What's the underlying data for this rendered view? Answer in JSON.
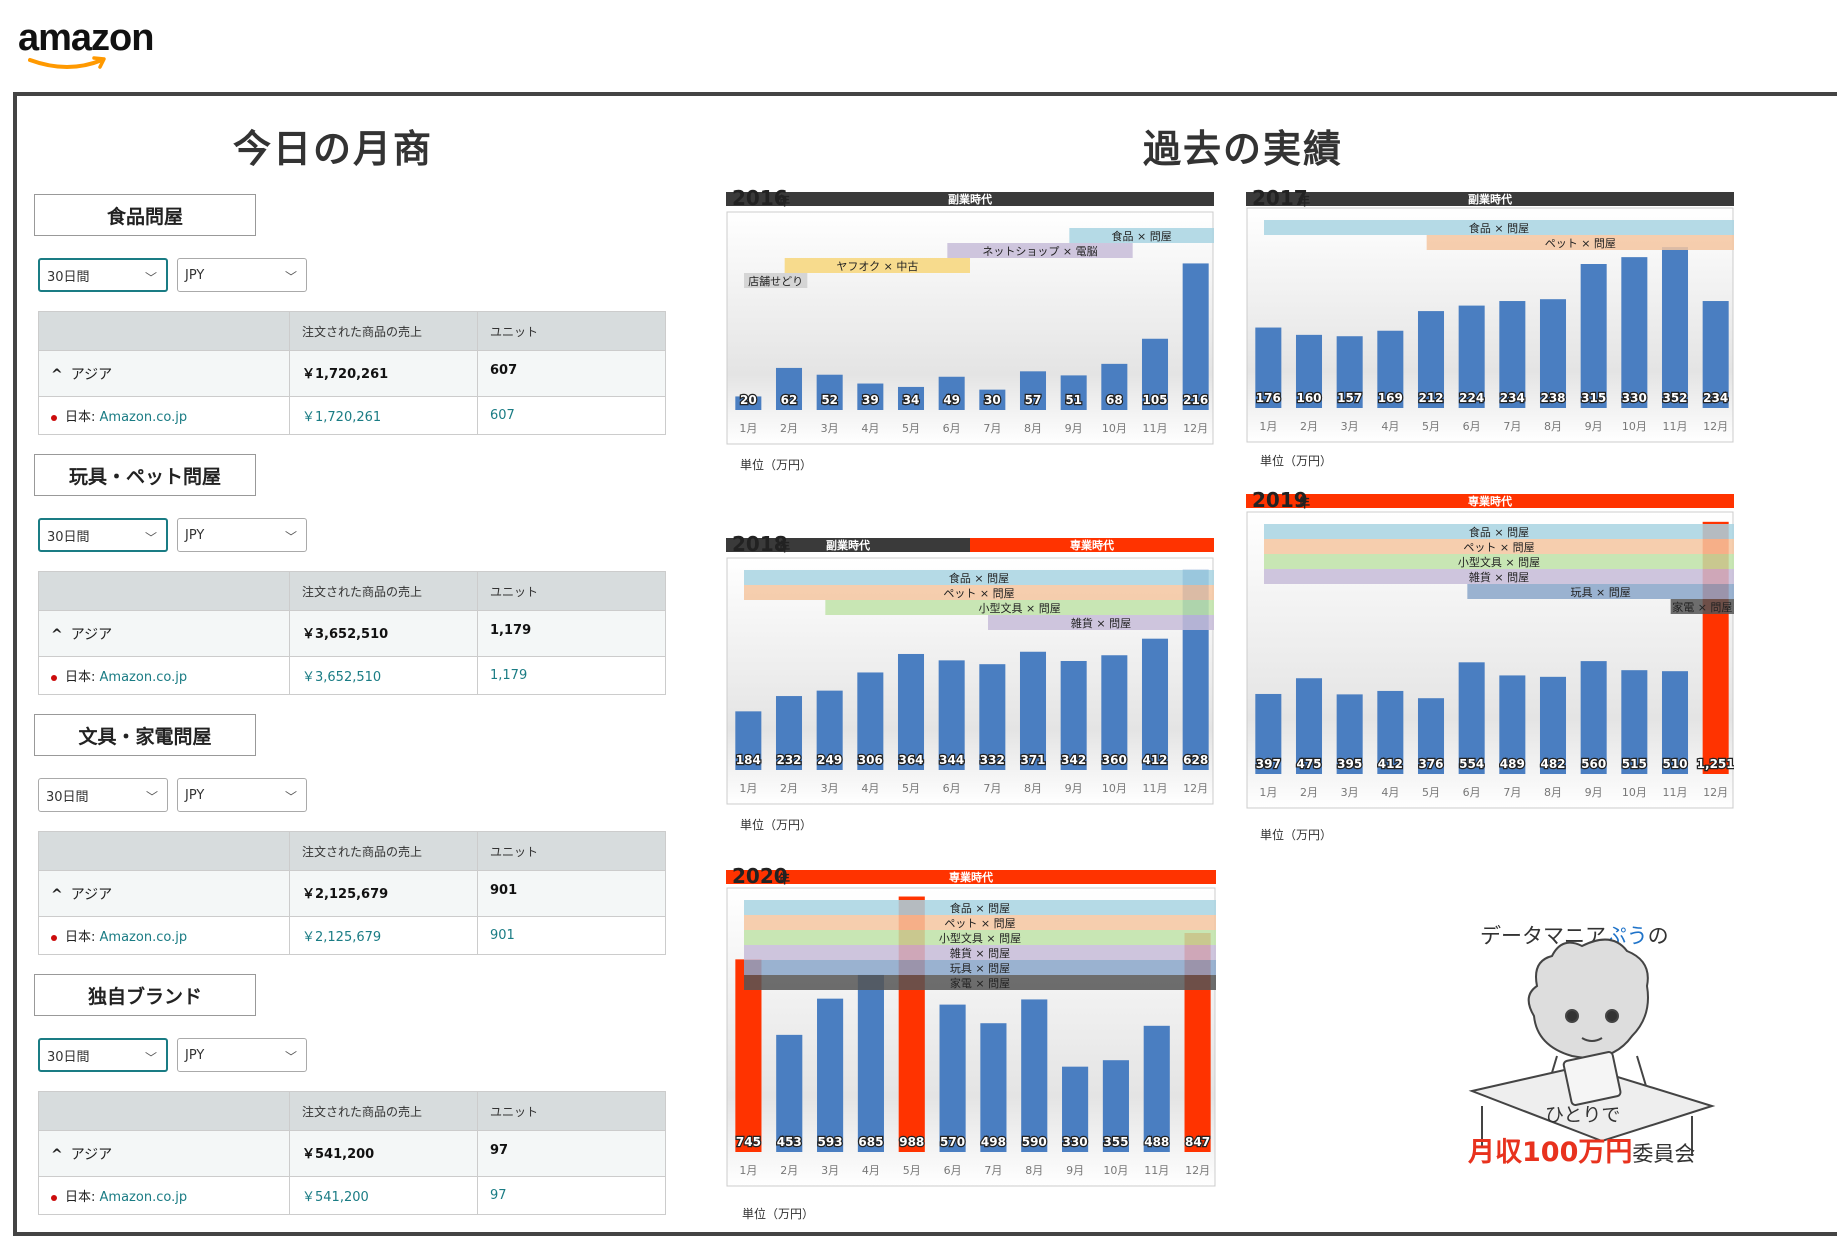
{
  "logo": {
    "text": "amazon"
  },
  "sections": {
    "left_title": "今日の月商",
    "right_title": "過去の実績"
  },
  "categories": [
    {
      "label": "食品問屋",
      "period": "30日間",
      "currency": "JPY",
      "header": [
        "",
        "注文された商品の売上",
        "ユニット"
      ],
      "region": "アジア",
      "region_sales": "￥1,720,261",
      "region_units": "607",
      "market_prefix": "日本:",
      "market": "Amazon.co.jp",
      "market_sales": "￥1,720,261",
      "market_units": "607"
    },
    {
      "label": "玩具・ペット問屋",
      "period": "30日間",
      "currency": "JPY",
      "header": [
        "",
        "注文された商品の売上",
        "ユニット"
      ],
      "region": "アジア",
      "region_sales": "￥3,652,510",
      "region_units": "1,179",
      "market_prefix": "日本:",
      "market": "Amazon.co.jp",
      "market_sales": "￥3,652,510",
      "market_units": "1,179"
    },
    {
      "label": "文具・家電問屋",
      "period": "30日間",
      "currency": "JPY",
      "header": [
        "",
        "注文された商品の売上",
        "ユニット"
      ],
      "region": "アジア",
      "region_sales": "￥2,125,679",
      "region_units": "901",
      "market_prefix": "日本:",
      "market": "Amazon.co.jp",
      "market_sales": "￥2,125,679",
      "market_units": "901"
    },
    {
      "label": "独自ブランド",
      "period": "30日間",
      "currency": "JPY",
      "header": [
        "",
        "注文された商品の売上",
        "ユニット"
      ],
      "region": "アジア",
      "region_sales": "￥541,200",
      "region_units": "97",
      "market_prefix": "日本:",
      "market": "Amazon.co.jp",
      "market_sales": "￥541,200",
      "market_units": "97"
    }
  ],
  "unit_label": "単位（万円）",
  "mascot": {
    "line1_a": "データマニア",
    "line1_b": "ぷう",
    "line1_c": "の",
    "line2": "ひとりで",
    "line3_a": "月収100万円",
    "line3_b": "委員会"
  },
  "colors": {
    "bar": "#4a7ec1",
    "highlight": "#ff3300",
    "dark_band": "#3a3a3a",
    "teal": "#1a7c84"
  },
  "chart_data": [
    {
      "type": "bar",
      "year": "2016",
      "year_suffix": "年",
      "categories": [
        "1月",
        "2月",
        "3月",
        "4月",
        "5月",
        "6月",
        "7月",
        "8月",
        "9月",
        "10月",
        "11月",
        "12月"
      ],
      "values": [
        20,
        62,
        52,
        39,
        34,
        49,
        30,
        57,
        51,
        68,
        105,
        216
      ],
      "labels": [
        "20",
        "62",
        "52",
        "39",
        "34",
        "49",
        "30",
        "57",
        "51",
        "68",
        "105",
        "216"
      ],
      "eras": [
        {
          "label": "副業時代",
          "color": "#3a3a3a",
          "from": 0,
          "to": 12
        }
      ],
      "bands": [
        {
          "label": "食品 × 問屋",
          "color": "#a8d4e2",
          "from": 8,
          "to": 12
        },
        {
          "label": "ネットショップ × 電脳",
          "color": "#c7bcd8",
          "from": 5,
          "to": 10
        },
        {
          "label": "ヤフオク × 中古",
          "color": "#f7d67a",
          "from": 1,
          "to": 6
        },
        {
          "label": "店舗せどり",
          "color": "#cfcfcf",
          "from": 0,
          "to": 2
        }
      ],
      "highlight": []
    },
    {
      "type": "bar",
      "year": "2017",
      "year_suffix": "年",
      "categories": [
        "1月",
        "2月",
        "3月",
        "4月",
        "5月",
        "6月",
        "7月",
        "8月",
        "9月",
        "10月",
        "11月",
        "12月"
      ],
      "values": [
        176,
        160,
        157,
        169,
        212,
        224,
        234,
        238,
        315,
        330,
        352,
        234
      ],
      "labels": [
        "176",
        "160",
        "157",
        "169",
        "212",
        "224",
        "234",
        "238",
        "315",
        "330",
        "352",
        "234"
      ],
      "eras": [
        {
          "label": "副業時代",
          "color": "#3a3a3a",
          "from": 0,
          "to": 12
        }
      ],
      "bands": [
        {
          "label": "食品 × 問屋",
          "color": "#a8d4e2",
          "from": 0,
          "to": 12
        },
        {
          "label": "ペット × 問屋",
          "color": "#f5c6a0",
          "from": 4,
          "to": 12
        }
      ],
      "highlight": []
    },
    {
      "type": "bar",
      "year": "2018",
      "year_suffix": "年",
      "categories": [
        "1月",
        "2月",
        "3月",
        "4月",
        "5月",
        "6月",
        "7月",
        "8月",
        "9月",
        "10月",
        "11月",
        "12月"
      ],
      "values": [
        184,
        232,
        249,
        306,
        364,
        344,
        332,
        371,
        342,
        360,
        412,
        628
      ],
      "labels": [
        "184",
        "232",
        "249",
        "306",
        "364",
        "344",
        "332",
        "371",
        "342",
        "360",
        "412",
        "628"
      ],
      "eras": [
        {
          "label": "副業時代",
          "color": "#3a3a3a",
          "from": 0,
          "to": 6
        },
        {
          "label": "専業時代",
          "color": "#ff3300",
          "from": 6,
          "to": 12
        }
      ],
      "bands": [
        {
          "label": "食品 × 問屋",
          "color": "#a8d4e2",
          "from": 0,
          "to": 12
        },
        {
          "label": "ペット × 問屋",
          "color": "#f5c6a0",
          "from": 0,
          "to": 12
        },
        {
          "label": "小型文具 × 問屋",
          "color": "#bfe3a8",
          "from": 2,
          "to": 12
        },
        {
          "label": "雑貨 × 問屋",
          "color": "#c7bcd8",
          "from": 6,
          "to": 12
        }
      ],
      "highlight": []
    },
    {
      "type": "bar",
      "year": "2019",
      "year_suffix": "年",
      "categories": [
        "1月",
        "2月",
        "3月",
        "4月",
        "5月",
        "6月",
        "7月",
        "8月",
        "9月",
        "10月",
        "11月",
        "12月"
      ],
      "values": [
        397,
        475,
        395,
        412,
        376,
        554,
        489,
        482,
        560,
        515,
        510,
        1251
      ],
      "labels": [
        "397",
        "475",
        "395",
        "412",
        "376",
        "554",
        "489",
        "482",
        "560",
        "515",
        "510",
        "1,251"
      ],
      "eras": [
        {
          "label": "専業時代",
          "color": "#ff3300",
          "from": 0,
          "to": 12
        }
      ],
      "bands": [
        {
          "label": "食品 × 問屋",
          "color": "#a8d4e2",
          "from": 0,
          "to": 12
        },
        {
          "label": "ペット × 問屋",
          "color": "#f5c6a0",
          "from": 0,
          "to": 12
        },
        {
          "label": "小型文具 × 問屋",
          "color": "#bfe3a8",
          "from": 0,
          "to": 12
        },
        {
          "label": "雑貨 × 問屋",
          "color": "#c7bcd8",
          "from": 0,
          "to": 12
        },
        {
          "label": "玩具 × 問屋",
          "color": "#8aa6c9",
          "from": 5,
          "to": 12
        },
        {
          "label": "家電 × 問屋",
          "color": "#555555",
          "from": 10,
          "to": 12
        }
      ],
      "highlight": [
        11
      ]
    },
    {
      "type": "bar",
      "year": "2020",
      "year_suffix": "年",
      "categories": [
        "1月",
        "2月",
        "3月",
        "4月",
        "5月",
        "6月",
        "7月",
        "8月",
        "9月",
        "10月",
        "11月",
        "12月"
      ],
      "values": [
        745,
        453,
        593,
        685,
        988,
        570,
        498,
        590,
        330,
        355,
        488,
        847
      ],
      "labels": [
        "745",
        "453",
        "593",
        "685",
        "988",
        "570",
        "498",
        "590",
        "330",
        "355",
        "488",
        "847"
      ],
      "eras": [
        {
          "label": "専業時代",
          "color": "#ff3300",
          "from": 0,
          "to": 12
        }
      ],
      "bands": [
        {
          "label": "食品 × 問屋",
          "color": "#a8d4e2",
          "from": 0,
          "to": 12
        },
        {
          "label": "ペット × 問屋",
          "color": "#f5c6a0",
          "from": 0,
          "to": 12
        },
        {
          "label": "小型文具 × 問屋",
          "color": "#bfe3a8",
          "from": 0,
          "to": 12
        },
        {
          "label": "雑貨 × 問屋",
          "color": "#c7bcd8",
          "from": 0,
          "to": 12
        },
        {
          "label": "玩具 × 問屋",
          "color": "#8aa6c9",
          "from": 0,
          "to": 12
        },
        {
          "label": "家電 × 問屋",
          "color": "#555555",
          "from": 0,
          "to": 12
        }
      ],
      "highlight": [
        0,
        4,
        11
      ]
    }
  ]
}
